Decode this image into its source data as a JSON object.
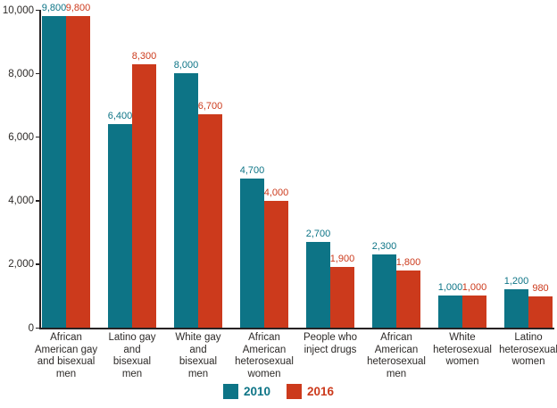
{
  "chart_data": {
    "type": "bar",
    "title": "",
    "categories": [
      "African American gay and bisexual men",
      "Latino gay and bisexual men",
      "White gay and bisexual men",
      "African American heterosexual women",
      "People who inject drugs",
      "African American heterosexual men",
      "White heterosexual women",
      "Latino heterosexual women"
    ],
    "category_lines": [
      [
        "African",
        "American gay",
        "and bisexual",
        "men"
      ],
      [
        "Latino gay",
        "and",
        "bisexual",
        "men"
      ],
      [
        "White gay",
        "and",
        "bisexual",
        "men"
      ],
      [
        "African",
        "American",
        "heterosexual",
        "women"
      ],
      [
        "People who",
        "inject drugs"
      ],
      [
        "African",
        "American",
        "heterosexual",
        "men"
      ],
      [
        "White",
        "heterosexual",
        "women"
      ],
      [
        "Latino",
        "heterosexual",
        "women"
      ]
    ],
    "series": [
      {
        "name": "2010",
        "color": "#0d7486",
        "values": [
          9800,
          6400,
          8000,
          4700,
          2700,
          2300,
          1000,
          1200
        ],
        "value_labels": [
          "9,800",
          "6,400",
          "8,000",
          "4,700",
          "2,700",
          "2,300",
          "1,000",
          "1,200"
        ]
      },
      {
        "name": "2016",
        "color": "#cc3a1c",
        "values": [
          9800,
          8300,
          6700,
          4000,
          1900,
          1800,
          1000,
          980
        ],
        "value_labels": [
          "9,800",
          "8,300",
          "6,700",
          "4,000",
          "1,900",
          "1,800",
          "1,000",
          "980"
        ]
      }
    ],
    "ylim": [
      0,
      10000
    ],
    "yticks": [
      {
        "value": 0,
        "label": "0"
      },
      {
        "value": 2000,
        "label": "2,000"
      },
      {
        "value": 4000,
        "label": "4,000"
      },
      {
        "value": 6000,
        "label": "6,000"
      },
      {
        "value": 8000,
        "label": "8,000"
      },
      {
        "value": 10000,
        "label": "10,000"
      }
    ],
    "grid": false,
    "legend_position": "bottom"
  },
  "colors": {
    "series_2010": "#0d7486",
    "series_2016": "#cc3a1c",
    "axis_line": "#262223",
    "axis_text": "#2d2a28",
    "background": "#ffffff"
  }
}
